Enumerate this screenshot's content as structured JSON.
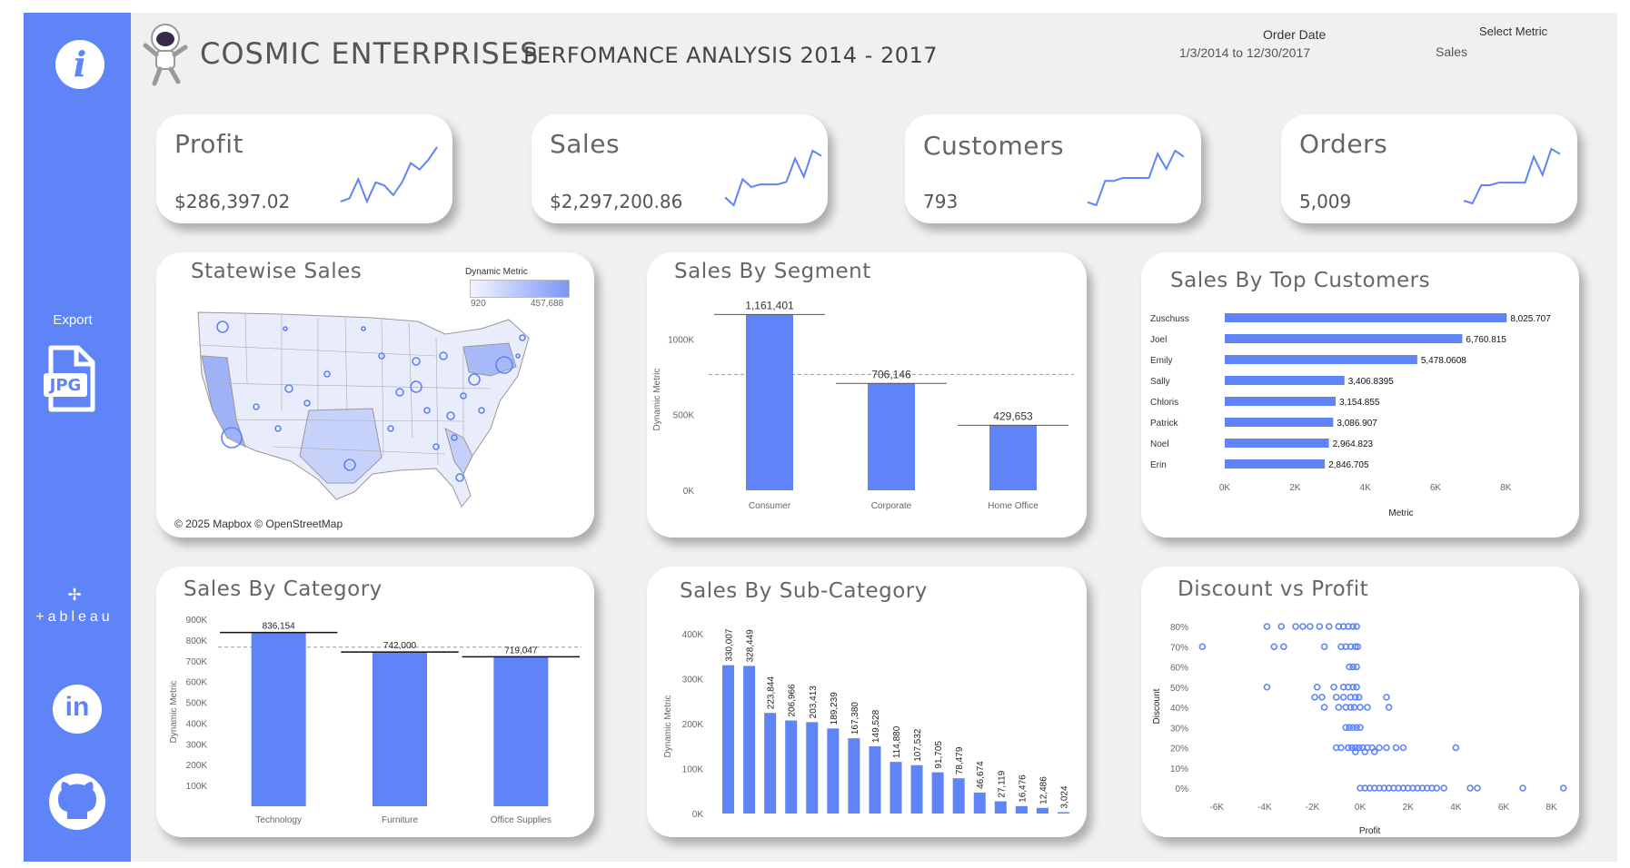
{
  "header": {
    "company": "COSMIC ENTERPRISES",
    "subtitle": "PERFOMANCE ANALYSIS 2014 - 2017",
    "order_date_label": "Order Date",
    "order_date_value": "1/3/2014 to 12/30/2017",
    "select_metric_label": "Select Metric",
    "select_metric_value": "Sales"
  },
  "sidebar": {
    "export_label": "Export",
    "jpg_label": "JPG",
    "tableau_label": "+ableau"
  },
  "kpis": [
    {
      "title": "Profit",
      "value": "$286,397.02",
      "spark": [
        2,
        3,
        9,
        2,
        8,
        7,
        4,
        8,
        14,
        12,
        15,
        19
      ]
    },
    {
      "title": "Sales",
      "value": "$2,297,200.86",
      "spark": [
        5,
        2,
        12,
        9,
        10,
        10,
        10,
        11,
        20,
        13,
        23,
        21
      ]
    },
    {
      "title": "Customers",
      "value": "793",
      "spark": [
        3,
        2,
        10,
        10,
        11,
        11,
        11,
        11,
        19,
        14,
        20,
        18
      ]
    },
    {
      "title": "Orders",
      "value": "5,009",
      "spark": [
        2,
        1,
        8,
        8,
        9,
        9,
        9,
        9,
        19,
        12,
        22,
        20
      ]
    }
  ],
  "map": {
    "title": "Statewise Sales",
    "legend_title": "Dynamic Metric",
    "legend_min": "920",
    "legend_max": "457,688",
    "attribution": "© 2025 Mapbox © OpenStreetMap",
    "colors": {
      "low": "#f3f5ff",
      "high": "#7b96f7"
    }
  },
  "segment": {
    "title": "Sales By Segment",
    "y_axis_label": "Dynamic Metric",
    "ticks": [
      "0K",
      "500K",
      "1000K"
    ],
    "chart_data": {
      "type": "bar",
      "categories": [
        "Consumer",
        "Corporate",
        "Home Office"
      ],
      "values": [
        1161401,
        706146,
        429653
      ],
      "labels": [
        "1,161,401",
        "706,146",
        "429,653"
      ],
      "ylim": [
        0,
        1200000
      ],
      "reference_line": 765733
    }
  },
  "top_customers": {
    "title": "Sales By Top Customers",
    "x_axis_label": "Metric",
    "ticks": [
      "0K",
      "2K",
      "4K",
      "6K",
      "8K"
    ],
    "chart_data": {
      "type": "bar",
      "orientation": "horizontal",
      "categories": [
        "Zuschuss",
        "Joel",
        "Emily",
        "Sally",
        "Chloris",
        "Patrick",
        "Noel",
        "Erin"
      ],
      "values": [
        8025.707,
        6760.815,
        5478.0608,
        3406.8395,
        3154.855,
        3086.907,
        2964.823,
        2846.705
      ],
      "labels": [
        "8,025.707",
        "6,760.815",
        "5,478.0608",
        "3,406.8395",
        "3,154.855",
        "3,086.907",
        "2,964.823",
        "2,846.705"
      ],
      "xlim": [
        0,
        9000
      ]
    }
  },
  "category": {
    "title": "Sales By Category",
    "y_axis_label": "Dynamic Metric",
    "ticks": [
      "100K",
      "200K",
      "300K",
      "400K",
      "500K",
      "600K",
      "700K",
      "800K",
      "900K"
    ],
    "chart_data": {
      "type": "bar",
      "categories": [
        "Technology",
        "Furniture",
        "Office Supplies"
      ],
      "values": [
        836154,
        742000,
        719047
      ],
      "labels": [
        "836,154",
        "742,000",
        "719,047"
      ],
      "ylim": [
        0,
        900000
      ],
      "reference_line": 765734
    }
  },
  "subcategory": {
    "title": "Sales By Sub-Category",
    "y_axis_label": "Dynamic Metric",
    "ticks": [
      "0K",
      "100K",
      "200K",
      "300K",
      "400K"
    ],
    "chart_data": {
      "type": "bar",
      "values": [
        330007,
        328449,
        223844,
        206966,
        203413,
        189239,
        167380,
        149528,
        114880,
        107532,
        91705,
        78479,
        46674,
        27119,
        16476,
        12486,
        3024
      ],
      "labels": [
        "330,007",
        "328,449",
        "223,844",
        "206,966",
        "203,413",
        "189,239",
        "167,380",
        "149,528",
        "114,880",
        "107,532",
        "91,705",
        "78,479",
        "46,674",
        "27,119",
        "16,476",
        "12,486",
        "3,024"
      ],
      "ylim": [
        0,
        400000
      ]
    }
  },
  "discount": {
    "title": "Discount vs Profit",
    "x_axis_label": "Profit",
    "y_axis_label": "Discount",
    "x_ticks": [
      "-6K",
      "-4K",
      "-2K",
      "0K",
      "2K",
      "4K",
      "6K",
      "8K"
    ],
    "y_ticks": [
      "0%",
      "10%",
      "20%",
      "30%",
      "40%",
      "50%",
      "60%",
      "70%",
      "80%"
    ],
    "chart_data": {
      "type": "scatter",
      "xlim": [
        -6500,
        8700
      ],
      "ylim": [
        0,
        0.8
      ],
      "points": [
        [
          -3900,
          0.8
        ],
        [
          -3300,
          0.8
        ],
        [
          -2700,
          0.8
        ],
        [
          -2400,
          0.8
        ],
        [
          -2100,
          0.8
        ],
        [
          -1700,
          0.8
        ],
        [
          -1300,
          0.8
        ],
        [
          -900,
          0.8
        ],
        [
          -700,
          0.8
        ],
        [
          -500,
          0.8
        ],
        [
          -300,
          0.8
        ],
        [
          -150,
          0.8
        ],
        [
          -6600,
          0.7
        ],
        [
          -3600,
          0.7
        ],
        [
          -3200,
          0.7
        ],
        [
          -1500,
          0.7
        ],
        [
          -800,
          0.7
        ],
        [
          -600,
          0.7
        ],
        [
          -400,
          0.7
        ],
        [
          -200,
          0.7
        ],
        [
          -100,
          0.7
        ],
        [
          -450,
          0.6
        ],
        [
          -300,
          0.6
        ],
        [
          -150,
          0.6
        ],
        [
          -3900,
          0.5
        ],
        [
          -1800,
          0.5
        ],
        [
          -1100,
          0.5
        ],
        [
          -700,
          0.5
        ],
        [
          -500,
          0.5
        ],
        [
          -300,
          0.5
        ],
        [
          -150,
          0.5
        ],
        [
          -1900,
          0.45
        ],
        [
          -1600,
          0.45
        ],
        [
          -1000,
          0.45
        ],
        [
          -700,
          0.45
        ],
        [
          -400,
          0.45
        ],
        [
          -200,
          0.45
        ],
        [
          1100,
          0.45
        ],
        [
          -50,
          0.45
        ],
        [
          -1500,
          0.4
        ],
        [
          -900,
          0.4
        ],
        [
          -600,
          0.4
        ],
        [
          -400,
          0.4
        ],
        [
          -250,
          0.4
        ],
        [
          0,
          0.4
        ],
        [
          300,
          0.4
        ],
        [
          1200,
          0.4
        ],
        [
          -600,
          0.3
        ],
        [
          -450,
          0.3
        ],
        [
          -300,
          0.3
        ],
        [
          -150,
          0.3
        ],
        [
          0,
          0.3
        ],
        [
          -1000,
          0.2
        ],
        [
          -800,
          0.2
        ],
        [
          -500,
          0.2
        ],
        [
          -350,
          0.2
        ],
        [
          -200,
          0.2
        ],
        [
          -50,
          0.2
        ],
        [
          100,
          0.2
        ],
        [
          300,
          0.2
        ],
        [
          500,
          0.2
        ],
        [
          800,
          0.2
        ],
        [
          1100,
          0.2
        ],
        [
          1500,
          0.2
        ],
        [
          1800,
          0.2
        ],
        [
          4000,
          0.2
        ],
        [
          -200,
          0.18
        ],
        [
          200,
          0.18
        ],
        [
          600,
          0.18
        ],
        [
          0,
          0.0
        ],
        [
          200,
          0.0
        ],
        [
          400,
          0.0
        ],
        [
          600,
          0.0
        ],
        [
          800,
          0.0
        ],
        [
          1000,
          0.0
        ],
        [
          1200,
          0.0
        ],
        [
          1400,
          0.0
        ],
        [
          1600,
          0.0
        ],
        [
          1800,
          0.0
        ],
        [
          2000,
          0.0
        ],
        [
          2200,
          0.0
        ],
        [
          2400,
          0.0
        ],
        [
          2600,
          0.0
        ],
        [
          2800,
          0.0
        ],
        [
          3000,
          0.0
        ],
        [
          3200,
          0.0
        ],
        [
          3500,
          0.0
        ],
        [
          4600,
          0.0
        ],
        [
          4900,
          0.0
        ],
        [
          6800,
          0.0
        ],
        [
          8500,
          0.0
        ]
      ]
    }
  }
}
